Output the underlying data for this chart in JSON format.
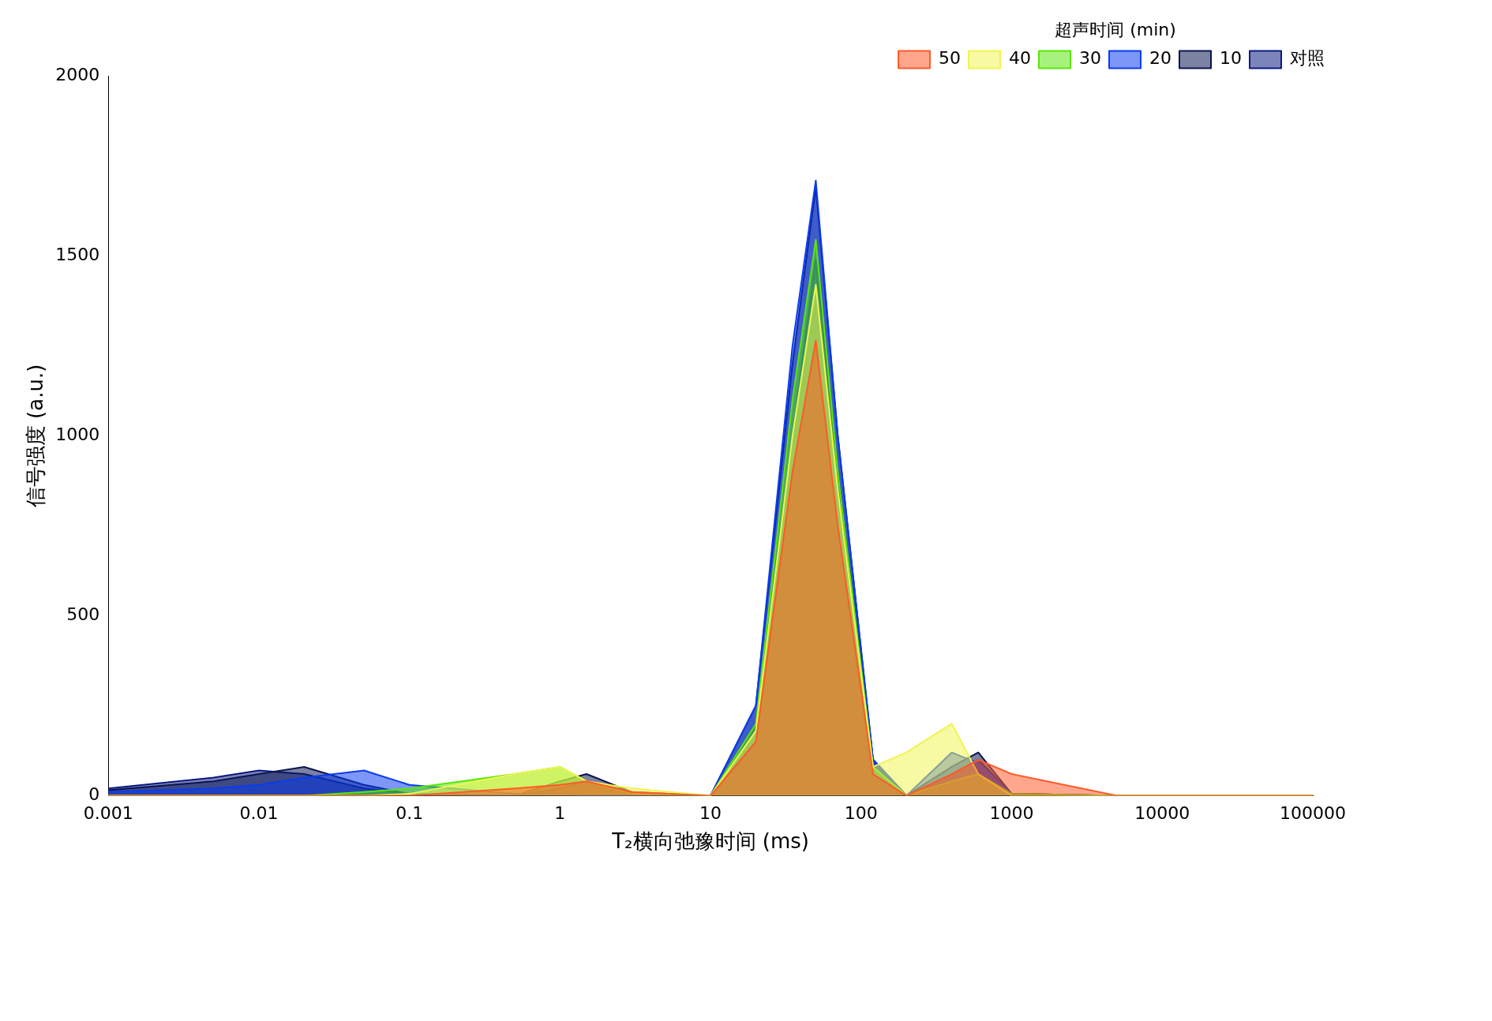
{
  "chart_data": {
    "type": "area",
    "xlabel": "T₂横向弛豫时间 (ms)",
    "ylabel": "信号强度 (a.u.)",
    "legend_title": "超声时间 (min)",
    "legend": "top right",
    "log": "x",
    "grid": false,
    "marker": "none",
    "x": [
      0.001,
      0.005,
      0.01,
      0.02,
      0.05,
      0.1,
      0.5,
      1,
      1.5,
      3,
      10,
      20,
      35,
      50,
      70,
      120,
      200,
      400,
      600,
      1000,
      5000,
      100000
    ],
    "xlim": [
      0.001,
      100000
    ],
    "xticks": [
      0.001,
      0.01,
      0.1,
      1,
      10,
      100,
      1000,
      10000,
      100000
    ],
    "ylim": [
      0,
      2000
    ],
    "yticks": [
      0,
      500,
      1000,
      1500,
      2000
    ],
    "series": [
      {
        "name": "对照",
        "color": "#0a1a80",
        "values": [
          20,
          50,
          70,
          60,
          20,
          5,
          0,
          20,
          40,
          5,
          0,
          200,
          1000,
          1490,
          900,
          100,
          0,
          60,
          100,
          5,
          0,
          0
        ]
      },
      {
        "name": "10",
        "color": "#0a1450",
        "values": [
          15,
          40,
          60,
          80,
          30,
          5,
          0,
          40,
          60,
          10,
          0,
          250,
          1200,
          1690,
          1000,
          100,
          0,
          80,
          120,
          5,
          0,
          0
        ]
      },
      {
        "name": "20",
        "color": "#0a3cf0",
        "values": [
          10,
          20,
          30,
          50,
          70,
          30,
          5,
          5,
          0,
          0,
          0,
          250,
          1250,
          1710,
          1000,
          100,
          0,
          120,
          90,
          5,
          0,
          0
        ]
      },
      {
        "name": "30",
        "color": "#5ae60a",
        "values": [
          0,
          0,
          0,
          0,
          10,
          20,
          60,
          80,
          40,
          5,
          0,
          200,
          1100,
          1545,
          900,
          80,
          0,
          40,
          60,
          5,
          0,
          0
        ]
      },
      {
        "name": "40",
        "color": "#f0f550",
        "values": [
          0,
          0,
          0,
          0,
          0,
          5,
          60,
          80,
          40,
          20,
          0,
          180,
          1000,
          1420,
          850,
          80,
          120,
          200,
          60,
          0,
          0,
          0
        ]
      },
      {
        "name": "50",
        "color": "#ff5a28",
        "values": [
          0,
          0,
          0,
          0,
          0,
          0,
          20,
          30,
          40,
          10,
          0,
          150,
          900,
          1265,
          750,
          60,
          0,
          60,
          100,
          60,
          0,
          0
        ]
      }
    ]
  }
}
